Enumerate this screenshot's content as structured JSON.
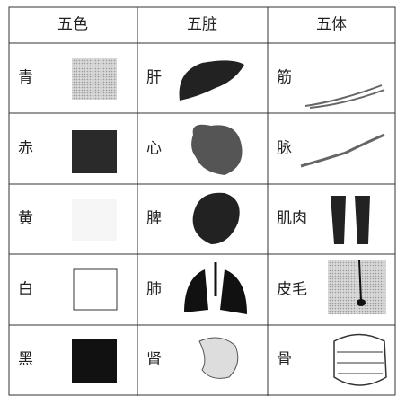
{
  "table": {
    "header": [
      "五色",
      "五脏",
      "五体"
    ],
    "rows": [
      [
        "青",
        "肝",
        "筋"
      ],
      [
        "赤",
        "心",
        "脉"
      ],
      [
        "黄",
        "脾",
        "肌肉"
      ],
      [
        "白",
        "肺",
        "皮毛"
      ],
      [
        "黑",
        "肾",
        "骨"
      ]
    ]
  }
}
